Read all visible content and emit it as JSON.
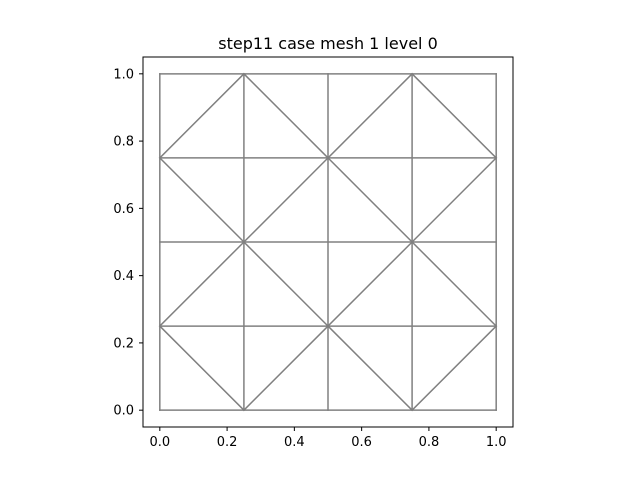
{
  "title": "step11 case mesh 1 level 0",
  "chart_data": {
    "type": "mesh",
    "title": "step11 case mesh 1 level 0",
    "xlabel": "",
    "ylabel": "",
    "xlim": [
      -0.05,
      1.05
    ],
    "ylim": [
      -0.05,
      1.05
    ],
    "aspect": "equal",
    "grid": false,
    "line_color": "#808080",
    "x_ticks": [
      0.0,
      0.2,
      0.4,
      0.6,
      0.8,
      1.0
    ],
    "y_ticks": [
      0.0,
      0.2,
      0.4,
      0.6,
      0.8,
      1.0
    ],
    "x_tick_labels": [
      "0.0",
      "0.2",
      "0.4",
      "0.6",
      "0.8",
      "1.0"
    ],
    "y_tick_labels": [
      "0.0",
      "0.2",
      "0.4",
      "0.6",
      "0.8",
      "1.0"
    ],
    "edges": [
      [
        [
          0,
          0
        ],
        [
          1,
          0
        ]
      ],
      [
        [
          0,
          0.25
        ],
        [
          1,
          0.25
        ]
      ],
      [
        [
          0,
          0.5
        ],
        [
          1,
          0.5
        ]
      ],
      [
        [
          0,
          0.75
        ],
        [
          1,
          0.75
        ]
      ],
      [
        [
          0,
          1
        ],
        [
          1,
          1
        ]
      ],
      [
        [
          0,
          0
        ],
        [
          0,
          1
        ]
      ],
      [
        [
          0.25,
          0
        ],
        [
          0.25,
          1
        ]
      ],
      [
        [
          0.5,
          0
        ],
        [
          0.5,
          1
        ]
      ],
      [
        [
          0.75,
          0
        ],
        [
          0.75,
          1
        ]
      ],
      [
        [
          1,
          0
        ],
        [
          1,
          1
        ]
      ],
      [
        [
          0,
          0.25
        ],
        [
          0.25,
          0
        ]
      ],
      [
        [
          0.25,
          0
        ],
        [
          0.5,
          0.25
        ]
      ],
      [
        [
          0.5,
          0.25
        ],
        [
          0.75,
          0
        ]
      ],
      [
        [
          0.75,
          0
        ],
        [
          1,
          0.25
        ]
      ],
      [
        [
          0,
          0.25
        ],
        [
          0.25,
          0.5
        ]
      ],
      [
        [
          0.25,
          0.5
        ],
        [
          0.5,
          0.25
        ]
      ],
      [
        [
          0.5,
          0.25
        ],
        [
          0.75,
          0.5
        ]
      ],
      [
        [
          0.75,
          0.5
        ],
        [
          1,
          0.25
        ]
      ],
      [
        [
          0,
          0.75
        ],
        [
          0.25,
          0.5
        ]
      ],
      [
        [
          0.25,
          0.5
        ],
        [
          0.5,
          0.75
        ]
      ],
      [
        [
          0.5,
          0.75
        ],
        [
          0.75,
          0.5
        ]
      ],
      [
        [
          0.75,
          0.5
        ],
        [
          1,
          0.75
        ]
      ],
      [
        [
          0,
          0.75
        ],
        [
          0.25,
          1
        ]
      ],
      [
        [
          0.25,
          1
        ],
        [
          0.5,
          0.75
        ]
      ],
      [
        [
          0.5,
          0.75
        ],
        [
          0.75,
          1
        ]
      ],
      [
        [
          0.75,
          1
        ],
        [
          1,
          0.75
        ]
      ]
    ]
  }
}
